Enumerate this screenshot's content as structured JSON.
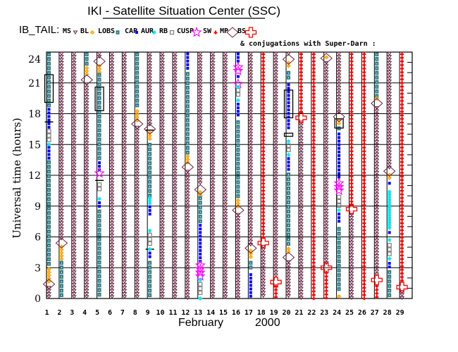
{
  "title": "IKI - Satellite Situation Center (SSC)",
  "legend_prefix": "IB_TAIL:",
  "legend": [
    {
      "label": "MS",
      "code": "MS",
      "color": "#6b2040"
    },
    {
      "label": "BL",
      "code": "BL",
      "color": "#ffa500"
    },
    {
      "label": "LOBS",
      "code": "LOBS",
      "color": "#2e7d87"
    },
    {
      "label": "CAP",
      "code": "CAP",
      "color": "#0000ff"
    },
    {
      "label": "AUR",
      "code": "AUR",
      "color": "#00e5ee"
    },
    {
      "label": "RB",
      "code": "RB",
      "color": "#808080"
    },
    {
      "label": "CUSP",
      "code": "CUSP",
      "color": "#ff00ff"
    },
    {
      "label": "SW",
      "code": "SW",
      "color": "#ff0000"
    },
    {
      "label": "MP",
      "code": "MP",
      "color": "#6b2040"
    },
    {
      "label": "BS",
      "code": "BS",
      "color": "#ff0000"
    }
  ],
  "conjugation_note": "& conjugations with Super-Darn :",
  "chart_data": {
    "type": "scatter",
    "title": "IKI - Satellite Situation Center (SSC)",
    "ylabel": "Universal time (hours)",
    "xlabel_month": "February",
    "xlabel_year": "2000",
    "ylim": [
      0,
      24
    ],
    "yticks": [
      "0",
      "3",
      "6",
      "9",
      "12",
      "15",
      "18",
      "21",
      "24"
    ],
    "xticks": [
      "1",
      "2",
      "3",
      "4",
      "5",
      "6",
      "7",
      "8",
      "9",
      "10",
      "11",
      "12",
      "13",
      "14",
      "15",
      "16",
      "17",
      "18",
      "19",
      "20",
      "21",
      "22",
      "23",
      "24",
      "25",
      "26",
      "27",
      "28",
      "29"
    ],
    "grid": true,
    "days": [
      {
        "day": 1,
        "segments": [
          [
            "LOBS",
            18.6,
            24
          ],
          [
            "CAP",
            16.5,
            18.6
          ],
          [
            "RB",
            15.3,
            16.5
          ],
          [
            "CAP",
            13.5,
            14.9
          ],
          [
            "LOBS",
            3,
            13.5
          ],
          [
            "BL",
            1.6,
            3
          ],
          [
            "MS",
            0,
            1.2
          ]
        ],
        "points": [
          [
            "AUR",
            15
          ],
          [
            "MP",
            1.4
          ]
        ],
        "conj_rects": [
          [
            19.1,
            21.8
          ]
        ],
        "conj_lines": [
          17.2
        ]
      },
      {
        "day": 2,
        "segments": [
          [
            "MS",
            5.7,
            24
          ],
          [
            "BL",
            3.8,
            5.2
          ],
          [
            "LOBS",
            0,
            3.7
          ]
        ],
        "points": [
          [
            "MP",
            5.4
          ]
        ]
      },
      {
        "day": 3,
        "segments": [
          [
            "MS",
            0,
            24
          ]
        ],
        "points": []
      },
      {
        "day": 4,
        "segments": [
          [
            "LOBS",
            22.7,
            24
          ],
          [
            "BL",
            21.8,
            22.6
          ],
          [
            "MS",
            0,
            21.0
          ]
        ],
        "points": [
          [
            "MP",
            21.3
          ]
        ]
      },
      {
        "day": 5,
        "segments": [
          [
            "MS",
            23.4,
            24
          ],
          [
            "BL",
            22.0,
            22.8
          ],
          [
            "LOBS",
            13.5,
            22.0
          ],
          [
            "CAP",
            12.5,
            13.4
          ],
          [
            "RB",
            10.3,
            11.3
          ],
          [
            "CAP",
            8.8,
            9.5
          ],
          [
            "LOBS",
            0,
            8.7
          ]
        ],
        "points": [
          [
            "MP",
            23.1
          ],
          [
            "CUSP",
            12.2
          ],
          [
            "AUR",
            9.7
          ]
        ],
        "conj_rects": [
          [
            18.3,
            20.6
          ]
        ],
        "conj_lines": [
          11.5
        ]
      },
      {
        "day": 6,
        "segments": [
          [
            "MS",
            0,
            24
          ]
        ],
        "points": []
      },
      {
        "day": 7,
        "segments": [
          [
            "MS",
            0,
            24
          ]
        ],
        "points": []
      },
      {
        "day": 8,
        "segments": [
          [
            "LOBS",
            18.4,
            24
          ],
          [
            "BL",
            17.3,
            18.4
          ],
          [
            "MS",
            0,
            16.8
          ]
        ],
        "points": [
          [
            "MP",
            17.0
          ]
        ]
      },
      {
        "day": 9,
        "segments": [
          [
            "MS",
            16.8,
            24
          ],
          [
            "BL",
            15.3,
            16.3
          ],
          [
            "LOBS",
            9.9,
            15.2
          ],
          [
            "AUR",
            9.2,
            9.9
          ],
          [
            "CAP",
            8.2,
            9.1
          ],
          [
            "RB",
            5.0,
            6.4
          ],
          [
            "CAP",
            3.8,
            4.6
          ],
          [
            "LOBS",
            0,
            3.7
          ]
        ],
        "points": [
          [
            "MP",
            16.5
          ],
          [
            "AUR",
            6.6
          ],
          [
            "AUR",
            4.8
          ]
        ],
        "conj_lines": [
          16.4,
          4.8
        ]
      },
      {
        "day": 10,
        "segments": [
          [
            "MS",
            0,
            24
          ]
        ],
        "points": []
      },
      {
        "day": 11,
        "segments": [
          [
            "MS",
            0,
            24
          ]
        ],
        "points": []
      },
      {
        "day": 12,
        "segments": [
          [
            "CAP",
            22.2,
            24
          ],
          [
            "LOBS",
            14.0,
            22.1
          ],
          [
            "BL",
            13.0,
            14.0
          ],
          [
            "MS",
            0,
            12.5
          ]
        ],
        "points": [
          [
            "MP",
            12.8
          ]
        ]
      },
      {
        "day": 13,
        "segments": [
          [
            "MS",
            11.0,
            24
          ],
          [
            "BL",
            10.0,
            10.5
          ],
          [
            "LOBS",
            7.3,
            10.0
          ],
          [
            "CAP",
            3.4,
            7.3
          ],
          [
            "CUSP",
            1.9,
            3.4
          ],
          [
            "RB",
            0.3,
            1.6
          ]
        ],
        "points": [
          [
            "MP",
            10.6
          ],
          [
            "AUR",
            1.8
          ],
          [
            "AUR",
            0.0
          ]
        ]
      },
      {
        "day": 14,
        "segments": [
          [
            "MS",
            0,
            24
          ]
        ],
        "points": []
      },
      {
        "day": 15,
        "segments": [
          [
            "MS",
            0,
            24
          ]
        ],
        "points": []
      },
      {
        "day": 16,
        "segments": [
          [
            "CAP",
            22.9,
            24
          ],
          [
            "CUSP",
            21.9,
            22.7
          ],
          [
            "CAP",
            21.3,
            21.8
          ],
          [
            "RB",
            19.6,
            20.5
          ],
          [
            "CAP",
            17.6,
            19.1
          ],
          [
            "LOBS",
            9.9,
            17.4
          ],
          [
            "BL",
            8.7,
            9.7
          ],
          [
            "MS",
            0,
            8.3
          ]
        ],
        "points": [
          [
            "CUSP",
            20.9
          ],
          [
            "AUR",
            20.6
          ],
          [
            "AUR",
            19.3
          ],
          [
            "MP",
            8.6
          ]
        ]
      },
      {
        "day": 17,
        "segments": [
          [
            "MS",
            5.2,
            24
          ],
          [
            "BL",
            3.8,
            4.8
          ],
          [
            "LOBS",
            2.6,
            3.7
          ],
          [
            "CAP",
            0,
            2.5
          ]
        ],
        "points": [
          [
            "MP",
            4.9
          ]
        ]
      },
      {
        "day": 18,
        "segments": [
          [
            "SW",
            5.7,
            24
          ],
          [
            "MS",
            0,
            5.2
          ]
        ],
        "points": [
          [
            "BS",
            5.4
          ]
        ]
      },
      {
        "day": 19,
        "segments": [
          [
            "MS",
            2.0,
            24
          ],
          [
            "SW",
            0,
            1.4
          ]
        ],
        "points": [
          [
            "BS",
            1.6
          ]
        ]
      },
      {
        "day": 20,
        "segments": [
          [
            "MS",
            23.6,
            24
          ],
          [
            "BL",
            22.4,
            23.1
          ],
          [
            "LOBS",
            21.3,
            22.2
          ],
          [
            "CAP",
            16.3,
            21.0
          ],
          [
            "RB",
            14.1,
            15.1
          ],
          [
            "CAP",
            12.4,
            13.8
          ],
          [
            "LOBS",
            5.1,
            12.3
          ],
          [
            "BL",
            4.4,
            5.0
          ],
          [
            "MS",
            0,
            3.7
          ]
        ],
        "points": [
          [
            "MP",
            23.3
          ],
          [
            "AUR",
            15.3
          ],
          [
            "AUR",
            14.0
          ],
          [
            "MP",
            4.0
          ]
        ],
        "conj_rects": [
          [
            17.6,
            20.3
          ],
          [
            15.8,
            16.1
          ]
        ]
      },
      {
        "day": 21,
        "segments": [
          [
            "SW",
            18.0,
            24
          ],
          [
            "MS",
            0,
            17.3
          ]
        ],
        "points": [
          [
            "BS",
            17.6
          ]
        ]
      },
      {
        "day": 22,
        "segments": [
          [
            "SW",
            0,
            24
          ]
        ],
        "points": []
      },
      {
        "day": 23,
        "segments": [
          [
            "MS",
            3.4,
            23.1
          ],
          [
            "SW",
            0,
            2.7
          ]
        ],
        "points": [
          [
            "MP",
            23.4
          ],
          [
            "BL",
            23.5
          ],
          [
            "BS",
            3.0
          ]
        ]
      },
      {
        "day": 24,
        "segments": [
          [
            "MS",
            18.0,
            24
          ],
          [
            "BL",
            16.9,
            17.5
          ],
          [
            "LOBS",
            16.3,
            16.8
          ],
          [
            "CAP",
            11.6,
            16.2
          ],
          [
            "CUSP",
            10.3,
            11.4
          ],
          [
            "RB",
            9.0,
            10.1
          ],
          [
            "CAP",
            7.3,
            8.4
          ],
          [
            "LOBS",
            0.5,
            7.0
          ]
        ],
        "points": [
          [
            "MP",
            17.7
          ],
          [
            "AUR",
            8.6
          ],
          [
            "BL",
            0.2
          ]
        ],
        "conj_rects": [
          [
            16.6,
            17.5
          ]
        ]
      },
      {
        "day": 25,
        "segments": [
          [
            "SW",
            9.1,
            24
          ],
          [
            "MS",
            0,
            8.3
          ]
        ],
        "points": [
          [
            "BS",
            8.7
          ]
        ]
      },
      {
        "day": 26,
        "segments": [
          [
            "SW",
            0,
            24
          ]
        ],
        "points": []
      },
      {
        "day": 27,
        "segments": [
          [
            "LOBS",
            19.7,
            24
          ],
          [
            "BL",
            19.2,
            19.6
          ],
          [
            "MS",
            2.3,
            18.7
          ],
          [
            "SW",
            0,
            1.4
          ]
        ],
        "points": [
          [
            "MP",
            19.0
          ],
          [
            "BS",
            1.8
          ]
        ]
      },
      {
        "day": 28,
        "segments": [
          [
            "MS",
            12.7,
            24
          ],
          [
            "BL",
            11.6,
            12.2
          ],
          [
            "CAP",
            11.0,
            11.4
          ],
          [
            "AUR",
            6.8,
            10.5
          ],
          [
            "CAP",
            6.2,
            6.6
          ],
          [
            "RB",
            4.2,
            5.4
          ],
          [
            "AUR",
            3.7,
            4.0
          ],
          [
            "CAP",
            3.0,
            3.6
          ],
          [
            "LOBS",
            0,
            2.8
          ]
        ],
        "points": [
          [
            "MP",
            12.4
          ],
          [
            "AUR",
            5.7
          ]
        ]
      },
      {
        "day": 29,
        "segments": [
          [
            "SW",
            1.5,
            24
          ],
          [
            "MS",
            0,
            0.8
          ]
        ],
        "points": [
          [
            "BS",
            1.1
          ]
        ]
      }
    ]
  }
}
